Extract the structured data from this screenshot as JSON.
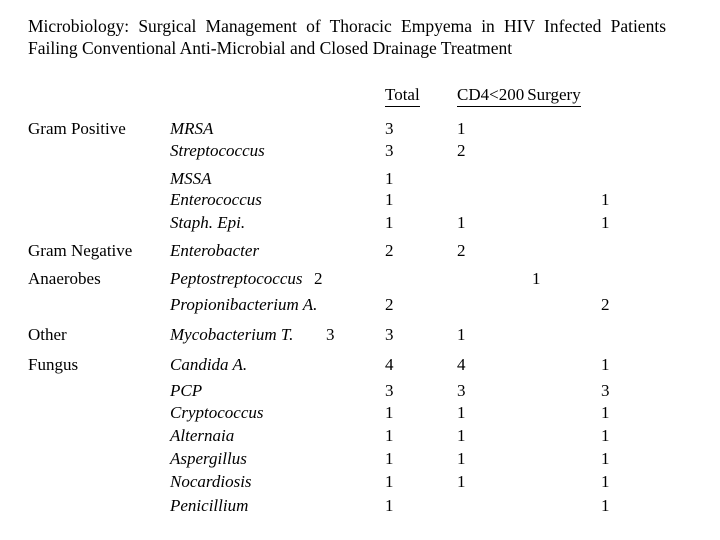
{
  "title": {
    "line1": "Microbiology: Surgical Management of Thoracic Empyema in HIV Infected Patients",
    "line2": "Failing Conventional Anti-Microbial and Closed Drainage Treatment"
  },
  "header": {
    "total": "Total",
    "cd4": "CD4<200",
    "surgery": "Surgery"
  },
  "table": {
    "rows": [
      {
        "category": "Gram Positive",
        "organism": "MRSA",
        "total": "3",
        "cd4": "1"
      },
      {
        "organism": "Streptococcus",
        "total": "3",
        "cd4": "2"
      },
      {
        "organism": "MSSA",
        "total": "1"
      },
      {
        "organism": "Enterococcus",
        "total": "1",
        "surgery": "1"
      },
      {
        "organism": "Staph. Epi.",
        "total": "1",
        "cd4": "1",
        "surgery": "1"
      },
      {
        "category": "Gram Negative",
        "organism": "Enterobacter",
        "total": "2",
        "cd4": "2"
      },
      {
        "category": "Anaerobes",
        "organism": "Peptostreptococcus",
        "suffix": "2",
        "mid": "1"
      },
      {
        "organism": "Propionibacterium A.",
        "total": "2",
        "surgery": "2"
      },
      {
        "category": "Other",
        "organism": "Mycobacterium T.",
        "suffix": "3",
        "total": "3",
        "cd4": "1"
      },
      {
        "category": "Fungus",
        "organism": "Candida A.",
        "total": "4",
        "cd4": "4",
        "surgery": "1"
      },
      {
        "organism": "PCP",
        "total": "3",
        "cd4": "3",
        "surgery": "3"
      },
      {
        "organism": "Cryptococcus",
        "total": "1",
        "cd4": "1",
        "surgery": "1"
      },
      {
        "organism": "Alternaia",
        "total": "1",
        "cd4": "1",
        "surgery": "1"
      },
      {
        "organism": "Aspergillus",
        "total": "1",
        "cd4": "1",
        "surgery": "1"
      },
      {
        "organism": "Nocardiosis",
        "total": "1",
        "cd4": "1",
        "surgery": "1"
      },
      {
        "organism": "Penicillium",
        "total": "1",
        "surgery": "1"
      }
    ]
  }
}
